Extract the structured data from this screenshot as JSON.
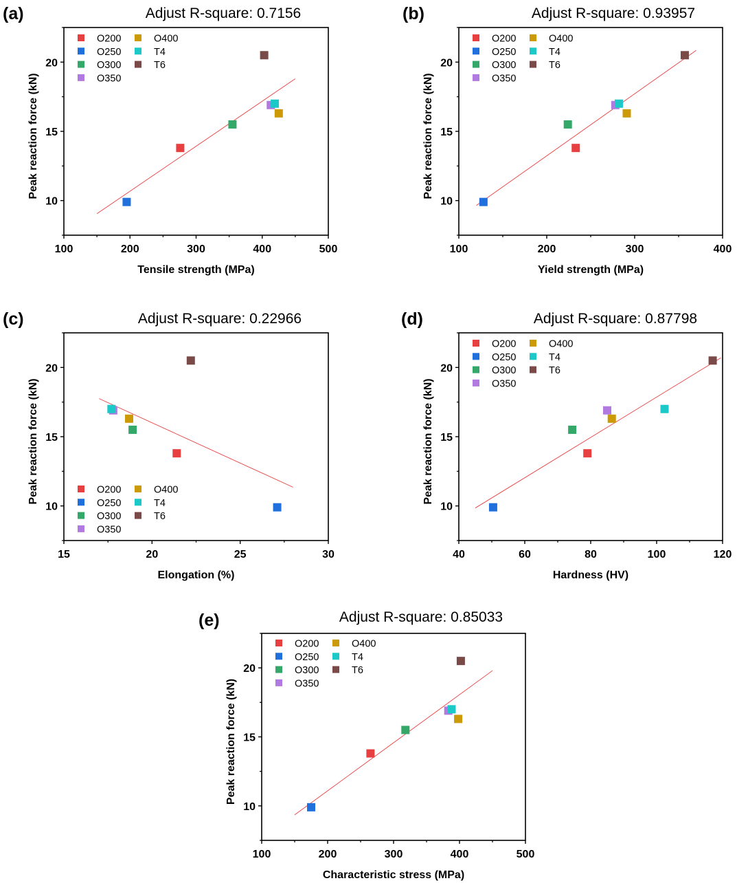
{
  "chart_data": [
    {
      "type": "scatter",
      "panel": "(a)",
      "title": "Adjust R-square: 0.7156",
      "xlabel": "Tensile strength (MPa)",
      "ylabel": "Peak reaction force (kN)",
      "xlim": [
        100,
        500
      ],
      "ylim": [
        7.5,
        22.5
      ],
      "xticks": [
        100,
        200,
        300,
        400,
        500
      ],
      "yticks": [
        10,
        15,
        20
      ],
      "grid": false,
      "legend_position": "top-left",
      "series": [
        {
          "name": "O200",
          "color": "#e84040",
          "x": [
            276
          ],
          "y": [
            13.8
          ]
        },
        {
          "name": "O250",
          "color": "#1f6fdc",
          "x": [
            195
          ],
          "y": [
            9.9
          ]
        },
        {
          "name": "O300",
          "color": "#34a868",
          "x": [
            355
          ],
          "y": [
            15.5
          ]
        },
        {
          "name": "O350",
          "color": "#b07ae0",
          "x": [
            413
          ],
          "y": [
            16.9
          ]
        },
        {
          "name": "O400",
          "color": "#cc9a06",
          "x": [
            425
          ],
          "y": [
            16.3
          ]
        },
        {
          "name": "T4",
          "color": "#1cc8c8",
          "x": [
            419
          ],
          "y": [
            17.0
          ]
        },
        {
          "name": "T6",
          "color": "#7a4a48",
          "x": [
            403
          ],
          "y": [
            20.5
          ]
        }
      ],
      "fit_line": {
        "color": "#e84040",
        "x": [
          150,
          450
        ],
        "y": [
          9.05,
          18.8
        ]
      }
    },
    {
      "type": "scatter",
      "panel": "(b)",
      "title": "Adjust R-square: 0.93957",
      "xlabel": "Yield strength (MPa)",
      "ylabel": "Peak reaction force (kN)",
      "xlim": [
        100,
        400
      ],
      "ylim": [
        7.5,
        22.5
      ],
      "xticks": [
        100,
        200,
        300,
        400
      ],
      "yticks": [
        10,
        15,
        20
      ],
      "grid": false,
      "legend_position": "top-left",
      "series": [
        {
          "name": "O200",
          "color": "#e84040",
          "x": [
            233
          ],
          "y": [
            13.8
          ]
        },
        {
          "name": "O250",
          "color": "#1f6fdc",
          "x": [
            128
          ],
          "y": [
            9.9
          ]
        },
        {
          "name": "O300",
          "color": "#34a868",
          "x": [
            224
          ],
          "y": [
            15.5
          ]
        },
        {
          "name": "O350",
          "color": "#b07ae0",
          "x": [
            278
          ],
          "y": [
            16.9
          ]
        },
        {
          "name": "O400",
          "color": "#cc9a06",
          "x": [
            291
          ],
          "y": [
            16.3
          ]
        },
        {
          "name": "T4",
          "color": "#1cc8c8",
          "x": [
            282
          ],
          "y": [
            17.0
          ]
        },
        {
          "name": "T6",
          "color": "#7a4a48",
          "x": [
            357
          ],
          "y": [
            20.5
          ]
        }
      ],
      "fit_line": {
        "color": "#e84040",
        "x": [
          120,
          370
        ],
        "y": [
          9.65,
          20.85
        ]
      }
    },
    {
      "type": "scatter",
      "panel": "(c)",
      "title": "Adjust R-square: 0.22966",
      "xlabel": "Elongation (%)",
      "ylabel": "Peak reaction force (kN)",
      "xlim": [
        15,
        30
      ],
      "ylim": [
        7.5,
        22.5
      ],
      "xticks": [
        15,
        20,
        25,
        30
      ],
      "yticks": [
        10,
        15,
        20
      ],
      "grid": false,
      "legend_position": "bottom-left",
      "series": [
        {
          "name": "O200",
          "color": "#e84040",
          "x": [
            21.4
          ],
          "y": [
            13.8
          ]
        },
        {
          "name": "O250",
          "color": "#1f6fdc",
          "x": [
            27.1
          ],
          "y": [
            9.9
          ]
        },
        {
          "name": "O300",
          "color": "#34a868",
          "x": [
            18.9
          ],
          "y": [
            15.5
          ]
        },
        {
          "name": "O350",
          "color": "#b07ae0",
          "x": [
            17.8
          ],
          "y": [
            16.9
          ]
        },
        {
          "name": "O400",
          "color": "#cc9a06",
          "x": [
            18.7
          ],
          "y": [
            16.3
          ]
        },
        {
          "name": "T4",
          "color": "#1cc8c8",
          "x": [
            17.7
          ],
          "y": [
            17.0
          ]
        },
        {
          "name": "T6",
          "color": "#7a4a48",
          "x": [
            22.2
          ],
          "y": [
            20.5
          ]
        }
      ],
      "fit_line": {
        "color": "#e84040",
        "x": [
          17,
          28
        ],
        "y": [
          17.75,
          11.35
        ]
      }
    },
    {
      "type": "scatter",
      "panel": "(d)",
      "title": "Adjust R-square: 0.87798",
      "xlabel": "Hardness (HV)",
      "ylabel": "Peak reaction force (kN)",
      "xlim": [
        40,
        120
      ],
      "ylim": [
        7.5,
        22.5
      ],
      "xticks": [
        40,
        60,
        80,
        100,
        120
      ],
      "yticks": [
        10,
        15,
        20
      ],
      "grid": false,
      "legend_position": "top-left",
      "series": [
        {
          "name": "O200",
          "color": "#e84040",
          "x": [
            79
          ],
          "y": [
            13.8
          ]
        },
        {
          "name": "O250",
          "color": "#1f6fdc",
          "x": [
            50.4
          ],
          "y": [
            9.9
          ]
        },
        {
          "name": "O300",
          "color": "#34a868",
          "x": [
            74.4
          ],
          "y": [
            15.5
          ]
        },
        {
          "name": "O350",
          "color": "#b07ae0",
          "x": [
            85
          ],
          "y": [
            16.9
          ]
        },
        {
          "name": "O400",
          "color": "#cc9a06",
          "x": [
            86.4
          ],
          "y": [
            16.3
          ]
        },
        {
          "name": "T4",
          "color": "#1cc8c8",
          "x": [
            102.4
          ],
          "y": [
            17.0
          ]
        },
        {
          "name": "T6",
          "color": "#7a4a48",
          "x": [
            117
          ],
          "y": [
            20.5
          ]
        }
      ],
      "fit_line": {
        "color": "#e84040",
        "x": [
          45,
          119.5
        ],
        "y": [
          9.85,
          20.7
        ]
      }
    },
    {
      "type": "scatter",
      "panel": "(e)",
      "title": "Adjust R-square: 0.85033",
      "xlabel": "Characteristic stress (MPa)",
      "ylabel": "Peak reaction force (kN)",
      "xlim": [
        100,
        500
      ],
      "ylim": [
        7.5,
        22.5
      ],
      "xticks": [
        100,
        200,
        300,
        400,
        500
      ],
      "yticks": [
        10,
        15,
        20
      ],
      "grid": false,
      "legend_position": "top-left",
      "series": [
        {
          "name": "O200",
          "color": "#e84040",
          "x": [
            265
          ],
          "y": [
            13.8
          ]
        },
        {
          "name": "O250",
          "color": "#1f6fdc",
          "x": [
            175
          ],
          "y": [
            9.9
          ]
        },
        {
          "name": "O300",
          "color": "#34a868",
          "x": [
            318
          ],
          "y": [
            15.5
          ]
        },
        {
          "name": "O350",
          "color": "#b07ae0",
          "x": [
            383
          ],
          "y": [
            16.9
          ]
        },
        {
          "name": "O400",
          "color": "#cc9a06",
          "x": [
            398
          ],
          "y": [
            16.3
          ]
        },
        {
          "name": "T4",
          "color": "#1cc8c8",
          "x": [
            388
          ],
          "y": [
            17.0
          ]
        },
        {
          "name": "T6",
          "color": "#7a4a48",
          "x": [
            402
          ],
          "y": [
            20.5
          ]
        }
      ],
      "fit_line": {
        "color": "#e84040",
        "x": [
          150,
          450
        ],
        "y": [
          9.35,
          19.8
        ]
      }
    }
  ]
}
